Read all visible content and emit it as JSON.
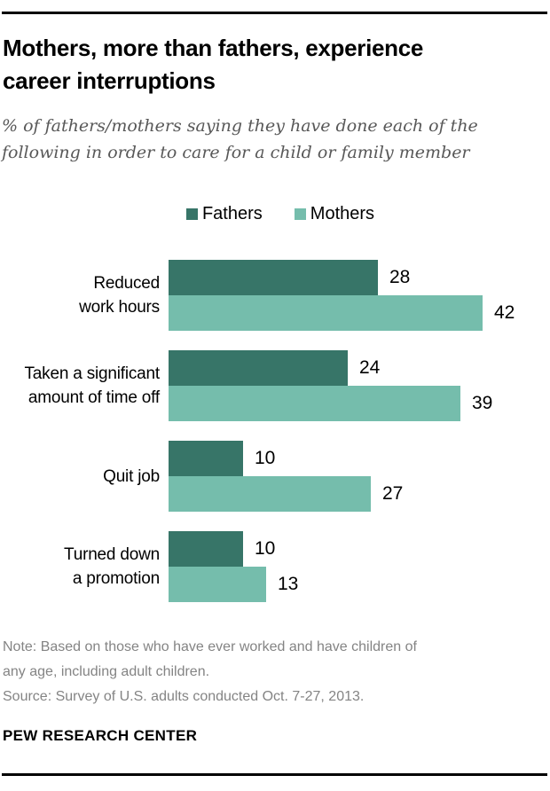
{
  "header": {
    "title_lines": [
      "Mothers, more than fathers, experience",
      "career interruptions"
    ],
    "subtitle_lines": [
      "% of fathers/mothers saying they have done each of the",
      "following in order to care for a child or family member"
    ]
  },
  "legend": {
    "items": [
      {
        "label": "Fathers",
        "color": "#377568"
      },
      {
        "label": "Mothers",
        "color": "#75bdac"
      }
    ]
  },
  "chart_data": {
    "type": "bar",
    "orientation": "horizontal",
    "title": "Mothers, more than fathers, experience career interruptions",
    "subtitle": "% of fathers/mothers saying they have done each of the following in order to care for a child or family member",
    "categories": [
      "Reduced work hours",
      "Taken a significant amount of time off",
      "Quit job",
      "Turned down a promotion"
    ],
    "category_label_lines": [
      [
        "Reduced",
        "work hours"
      ],
      [
        "Taken a significant",
        "amount of time off"
      ],
      [
        "Quit job"
      ],
      [
        "Turned down",
        "a promotion"
      ]
    ],
    "series": [
      {
        "name": "Fathers",
        "color": "#377568",
        "values": [
          28,
          24,
          10,
          10
        ]
      },
      {
        "name": "Mothers",
        "color": "#75bdac",
        "values": [
          42,
          39,
          27,
          13
        ]
      }
    ],
    "value_labels_shown": true,
    "axes_shown": false,
    "grid": false,
    "legend_position": "top",
    "unit": "%"
  },
  "footer": {
    "note_lines": [
      "Note: Based on those who have ever worked and have children of",
      "any age, including adult children."
    ],
    "source_line": "Source: Survey of U.S. adults conducted Oct. 7-27, 2013.",
    "brand": "PEW RESEARCH CENTER"
  },
  "colors": {
    "fathers": "#377568",
    "mothers": "#75bdac",
    "title": "#000000",
    "subtitle_gray": "#585858",
    "note_gray": "#848484",
    "rule": "#000000"
  }
}
